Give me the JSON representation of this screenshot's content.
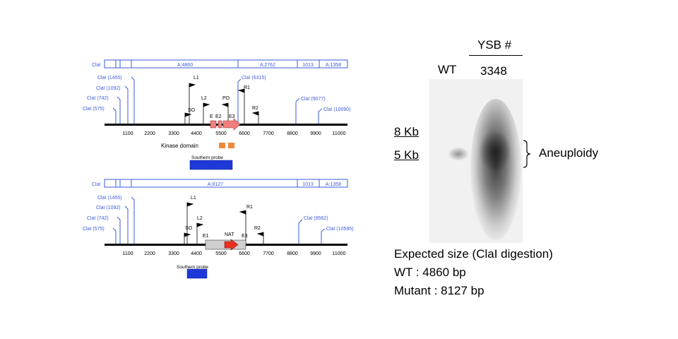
{
  "maps": [
    {
      "id": "wt",
      "segments": [
        {
          "label": "ClaI"
        },
        {
          "label": "A:4860"
        },
        {
          "label": "A:2762"
        },
        {
          "label": "1013"
        },
        {
          "label": "A:1358"
        }
      ],
      "sites": [
        {
          "label": "ClaI (575)"
        },
        {
          "label": "ClaI (742)"
        },
        {
          "label": "ClaI (1092)"
        },
        {
          "label": "ClaI (1455)"
        },
        {
          "label": "ClaI (6315)"
        },
        {
          "label": "ClaI (9077)"
        },
        {
          "label": "ClaI (10090)"
        }
      ],
      "primers": [
        "SO",
        "L1",
        "L2",
        "PO",
        "R1",
        "R2"
      ],
      "exons": [
        "E",
        "E2",
        "E3"
      ],
      "axis_ticks": [
        "1100",
        "2200",
        "3300",
        "4400",
        "5500",
        "6600",
        "7700",
        "8800",
        "9900",
        "11000"
      ],
      "kinase_label": "Kinase domain",
      "probe_label": "Southern probe"
    },
    {
      "id": "mutant",
      "segments": [
        {
          "label": "ClaI"
        },
        {
          "label": "A:8127"
        },
        {
          "label": "1013"
        },
        {
          "label": "A:1358"
        }
      ],
      "sites": [
        {
          "label": "ClaI (575)"
        },
        {
          "label": "ClaI (742)"
        },
        {
          "label": "ClaI (1092)"
        },
        {
          "label": "ClaI (1455)"
        },
        {
          "label": "ClaI (9582)"
        },
        {
          "label": "ClaI (10595)"
        }
      ],
      "primers": [
        "SO",
        "L1",
        "L2",
        "R1",
        "R2"
      ],
      "exons": [
        "E1",
        "NAT",
        "E3"
      ],
      "axis_ticks": [
        "1100",
        "2200",
        "3300",
        "4400",
        "5500",
        "6600",
        "7700",
        "8800",
        "9900",
        "11000"
      ],
      "probe_label": "Southern probe"
    }
  ],
  "blot": {
    "group_label": "YSB #",
    "lanes": [
      "WT",
      "3348"
    ],
    "size_markers": [
      "8 Kb",
      "5 Kb"
    ],
    "annotation": "Aneuploidy"
  },
  "caption": [
    "Expected size (ClaI digestion)",
    "WT : 4860 bp",
    "Mutant : 8127 bp"
  ],
  "colors": {
    "map_blue": "#3a5bd9",
    "exon_pink": "#f08080",
    "kinase_orange": "#ee8a3c",
    "probe_blue": "#1e38d8",
    "nat_red": "#e8321e",
    "gray_box": "#cfcfcf"
  }
}
